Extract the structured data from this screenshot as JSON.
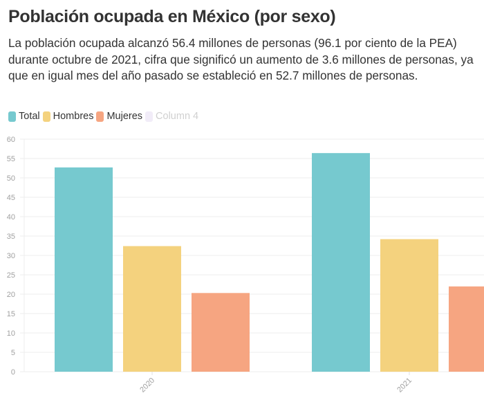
{
  "header": {
    "title": "Población ocupada en México (por sexo)",
    "subtitle": "La población ocupada alcanzó 56.4 millones de personas (96.1 por ciento de la PEA) durante octubre de 2021, cifra que significó un aumento de 3.6 millones de personas, ya que en igual mes del año pasado se estableció en 52.7 millones de personas."
  },
  "legend": [
    {
      "label": "Total",
      "color": "#76c9cf",
      "active": true
    },
    {
      "label": "Hombres",
      "color": "#f4d27e",
      "active": true
    },
    {
      "label": "Mujeres",
      "color": "#f6a581",
      "active": true
    },
    {
      "label": "Column 4",
      "color": "#f1ecf8",
      "active": false
    }
  ],
  "chart_data": {
    "type": "bar",
    "title": "Población ocupada en México (por sexo)",
    "xlabel": "",
    "ylabel": "",
    "categories": [
      "2020",
      "2021"
    ],
    "series": [
      {
        "name": "Total",
        "values": [
          52.7,
          56.4
        ],
        "color": "#76c9cf"
      },
      {
        "name": "Hombres",
        "values": [
          32.4,
          34.2
        ],
        "color": "#f4d27e"
      },
      {
        "name": "Mujeres",
        "values": [
          20.3,
          22.0
        ],
        "color": "#f6a581"
      }
    ],
    "ylim": [
      0,
      60
    ],
    "yticks": [
      0,
      5,
      10,
      15,
      20,
      25,
      30,
      35,
      40,
      45,
      50,
      55,
      60
    ],
    "grid": true,
    "legend_position": "top-left"
  }
}
